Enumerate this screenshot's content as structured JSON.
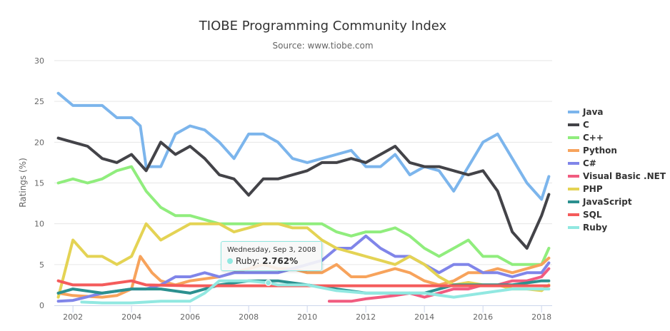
{
  "chart_data": {
    "type": "line",
    "title": "TIOBE Programming Community Index",
    "subtitle": "Source: www.tiobe.com",
    "ylabel": "Ratings (%)",
    "xlabel": "",
    "xlim": [
      2001.46,
      2018.24
    ],
    "ylim": [
      0,
      30
    ],
    "yticks": [
      0,
      5,
      10,
      15,
      20,
      25,
      30
    ],
    "xticks": [
      2002,
      2004,
      2006,
      2008,
      2010,
      2012,
      2014,
      2016,
      2018
    ],
    "grid": "horizontal",
    "legend_position": "right",
    "series": [
      {
        "name": "Java",
        "color": "#7cb5ec",
        "points": [
          [
            2001.5,
            26
          ],
          [
            2002,
            24.5
          ],
          [
            2002.5,
            24.5
          ],
          [
            2003,
            24.5
          ],
          [
            2003.5,
            23
          ],
          [
            2004,
            23
          ],
          [
            2004.3,
            22
          ],
          [
            2004.5,
            17
          ],
          [
            2005,
            17
          ],
          [
            2005.5,
            21
          ],
          [
            2006,
            22
          ],
          [
            2006.5,
            21.5
          ],
          [
            2007,
            20
          ],
          [
            2007.5,
            18
          ],
          [
            2008,
            21
          ],
          [
            2008.5,
            21
          ],
          [
            2009,
            20
          ],
          [
            2009.5,
            18
          ],
          [
            2010,
            17.5
          ],
          [
            2010.5,
            18
          ],
          [
            2011,
            18.5
          ],
          [
            2011.5,
            19
          ],
          [
            2012,
            17
          ],
          [
            2012.5,
            17
          ],
          [
            2013,
            18.5
          ],
          [
            2013.5,
            16
          ],
          [
            2014,
            17
          ],
          [
            2014.5,
            16.5
          ],
          [
            2015,
            14
          ],
          [
            2015.5,
            17
          ],
          [
            2016,
            20
          ],
          [
            2016.5,
            21
          ],
          [
            2017,
            18
          ],
          [
            2017.5,
            15
          ],
          [
            2018,
            13
          ],
          [
            2018.25,
            15.8
          ]
        ]
      },
      {
        "name": "C",
        "color": "#434348",
        "points": [
          [
            2001.5,
            20.5
          ],
          [
            2002,
            20
          ],
          [
            2002.5,
            19.5
          ],
          [
            2003,
            18
          ],
          [
            2003.5,
            17.5
          ],
          [
            2004,
            18.5
          ],
          [
            2004.5,
            16.5
          ],
          [
            2005,
            20
          ],
          [
            2005.5,
            18.5
          ],
          [
            2006,
            19.5
          ],
          [
            2006.5,
            18
          ],
          [
            2007,
            16
          ],
          [
            2007.5,
            15.5
          ],
          [
            2008,
            13.5
          ],
          [
            2008.5,
            15.5
          ],
          [
            2009,
            15.5
          ],
          [
            2009.5,
            16
          ],
          [
            2010,
            16.5
          ],
          [
            2010.5,
            17.5
          ],
          [
            2011,
            17.5
          ],
          [
            2011.5,
            18
          ],
          [
            2012,
            17.5
          ],
          [
            2012.5,
            18.5
          ],
          [
            2013,
            19.5
          ],
          [
            2013.5,
            17.5
          ],
          [
            2014,
            17
          ],
          [
            2014.5,
            17
          ],
          [
            2015,
            16.5
          ],
          [
            2015.5,
            16
          ],
          [
            2016,
            16.5
          ],
          [
            2016.5,
            14
          ],
          [
            2017,
            9
          ],
          [
            2017.5,
            7
          ],
          [
            2018,
            11
          ],
          [
            2018.25,
            13.6
          ]
        ]
      },
      {
        "name": "C++",
        "color": "#90ed7d",
        "points": [
          [
            2001.5,
            15
          ],
          [
            2002,
            15.5
          ],
          [
            2002.5,
            15
          ],
          [
            2003,
            15.5
          ],
          [
            2003.5,
            16.5
          ],
          [
            2004,
            17
          ],
          [
            2004.5,
            14
          ],
          [
            2005,
            12
          ],
          [
            2005.5,
            11
          ],
          [
            2006,
            11
          ],
          [
            2006.5,
            10.5
          ],
          [
            2007,
            10
          ],
          [
            2007.5,
            10
          ],
          [
            2008,
            10
          ],
          [
            2008.5,
            10
          ],
          [
            2009,
            10
          ],
          [
            2009.5,
            10
          ],
          [
            2010,
            10
          ],
          [
            2010.5,
            10
          ],
          [
            2011,
            9
          ],
          [
            2011.5,
            8.5
          ],
          [
            2012,
            9
          ],
          [
            2012.5,
            9
          ],
          [
            2013,
            9.5
          ],
          [
            2013.5,
            8.5
          ],
          [
            2014,
            7
          ],
          [
            2014.5,
            6
          ],
          [
            2015,
            7
          ],
          [
            2015.5,
            8
          ],
          [
            2016,
            6
          ],
          [
            2016.5,
            6
          ],
          [
            2017,
            5
          ],
          [
            2017.5,
            5
          ],
          [
            2018,
            5
          ],
          [
            2018.25,
            7
          ]
        ]
      },
      {
        "name": "Python",
        "color": "#f7a35c",
        "points": [
          [
            2001.5,
            1.5
          ],
          [
            2002,
            1.2
          ],
          [
            2003,
            1
          ],
          [
            2003.5,
            1.2
          ],
          [
            2004,
            2
          ],
          [
            2004.3,
            6
          ],
          [
            2004.7,
            4
          ],
          [
            2005,
            3
          ],
          [
            2005.5,
            2.5
          ],
          [
            2006,
            3
          ],
          [
            2007,
            3.5
          ],
          [
            2007.5,
            4
          ],
          [
            2008,
            4.5
          ],
          [
            2008.5,
            5
          ],
          [
            2009,
            4.5
          ],
          [
            2009.5,
            4.5
          ],
          [
            2010,
            4
          ],
          [
            2010.5,
            4
          ],
          [
            2011,
            5
          ],
          [
            2011.5,
            3.5
          ],
          [
            2012,
            3.5
          ],
          [
            2012.5,
            4
          ],
          [
            2013,
            4.5
          ],
          [
            2013.5,
            4
          ],
          [
            2014,
            3
          ],
          [
            2014.5,
            2.5
          ],
          [
            2015,
            3
          ],
          [
            2015.5,
            4
          ],
          [
            2016,
            4
          ],
          [
            2016.5,
            4.5
          ],
          [
            2017,
            4
          ],
          [
            2017.5,
            4.5
          ],
          [
            2018,
            5
          ],
          [
            2018.25,
            5.8
          ]
        ]
      },
      {
        "name": "C#",
        "color": "#8085e9",
        "points": [
          [
            2001.5,
            0.5
          ],
          [
            2002,
            0.6
          ],
          [
            2003,
            1.5
          ],
          [
            2004,
            2
          ],
          [
            2004.5,
            2
          ],
          [
            2005,
            2.5
          ],
          [
            2005.5,
            3.5
          ],
          [
            2006,
            3.5
          ],
          [
            2006.5,
            4
          ],
          [
            2007,
            3.5
          ],
          [
            2007.5,
            4
          ],
          [
            2008,
            4
          ],
          [
            2008.5,
            4
          ],
          [
            2009,
            4
          ],
          [
            2009.5,
            4.5
          ],
          [
            2010,
            5
          ],
          [
            2010.5,
            5.5
          ],
          [
            2011,
            7
          ],
          [
            2011.5,
            7
          ],
          [
            2012,
            8.5
          ],
          [
            2012.5,
            7
          ],
          [
            2013,
            6
          ],
          [
            2013.5,
            6
          ],
          [
            2014,
            5
          ],
          [
            2014.5,
            4
          ],
          [
            2015,
            5
          ],
          [
            2015.5,
            5
          ],
          [
            2016,
            4
          ],
          [
            2016.5,
            4
          ],
          [
            2017,
            3.5
          ],
          [
            2017.5,
            4
          ],
          [
            2018,
            4
          ],
          [
            2018.25,
            5.2
          ]
        ]
      },
      {
        "name": "Visual Basic .NET",
        "color": "#f15c80",
        "points": [
          [
            2010.75,
            0.5
          ],
          [
            2011,
            0.5
          ],
          [
            2011.5,
            0.5
          ],
          [
            2012,
            0.8
          ],
          [
            2012.5,
            1
          ],
          [
            2013,
            1.2
          ],
          [
            2013.5,
            1.5
          ],
          [
            2014,
            1
          ],
          [
            2014.5,
            1.5
          ],
          [
            2015,
            2
          ],
          [
            2015.5,
            2
          ],
          [
            2016,
            2.5
          ],
          [
            2016.5,
            2.5
          ],
          [
            2017,
            3
          ],
          [
            2017.5,
            3
          ],
          [
            2018,
            3.5
          ],
          [
            2018.25,
            4.5
          ]
        ]
      },
      {
        "name": "PHP",
        "color": "#e4d354",
        "points": [
          [
            2001.5,
            1
          ],
          [
            2002,
            8
          ],
          [
            2002.5,
            6
          ],
          [
            2003,
            6
          ],
          [
            2003.5,
            5
          ],
          [
            2004,
            6
          ],
          [
            2004.5,
            10
          ],
          [
            2005,
            8
          ],
          [
            2005.5,
            9
          ],
          [
            2006,
            10
          ],
          [
            2006.5,
            10
          ],
          [
            2007,
            10
          ],
          [
            2007.5,
            9
          ],
          [
            2008,
            9.5
          ],
          [
            2008.5,
            10
          ],
          [
            2009,
            10
          ],
          [
            2009.5,
            9.5
          ],
          [
            2010,
            9.5
          ],
          [
            2010.5,
            8
          ],
          [
            2011,
            7
          ],
          [
            2011.5,
            6.5
          ],
          [
            2012,
            6
          ],
          [
            2012.5,
            5.5
          ],
          [
            2013,
            5
          ],
          [
            2013.5,
            6
          ],
          [
            2014,
            5
          ],
          [
            2014.5,
            3.5
          ],
          [
            2015,
            2.5
          ],
          [
            2015.5,
            2.8
          ],
          [
            2016,
            2.5
          ],
          [
            2016.5,
            2.5
          ],
          [
            2017,
            2
          ],
          [
            2017.5,
            2
          ],
          [
            2018,
            1.8
          ],
          [
            2018.25,
            2.5
          ]
        ]
      },
      {
        "name": "JavaScript",
        "color": "#2b908f",
        "points": [
          [
            2001.5,
            1.5
          ],
          [
            2002,
            2
          ],
          [
            2003,
            1.5
          ],
          [
            2004,
            2
          ],
          [
            2005,
            2
          ],
          [
            2006,
            1.5
          ],
          [
            2007,
            2.5
          ],
          [
            2008,
            3
          ],
          [
            2009,
            3
          ],
          [
            2010,
            2.5
          ],
          [
            2011,
            2
          ],
          [
            2012,
            1.5
          ],
          [
            2013,
            1.5
          ],
          [
            2014,
            1.5
          ],
          [
            2015,
            2.5
          ],
          [
            2016,
            2.5
          ],
          [
            2017,
            2.5
          ],
          [
            2018,
            3
          ],
          [
            2018.25,
            3
          ]
        ]
      },
      {
        "name": "SQL",
        "color": "#f45b5b",
        "points": [
          [
            2001.5,
            3
          ],
          [
            2002,
            2.5
          ],
          [
            2003,
            2.5
          ],
          [
            2004,
            3
          ],
          [
            2004.5,
            2.5
          ],
          [
            2006,
            2.4
          ],
          [
            2008,
            2.4
          ],
          [
            2010,
            2.4
          ],
          [
            2012,
            2.4
          ],
          [
            2014,
            2.4
          ],
          [
            2016,
            2.4
          ],
          [
            2018,
            2.4
          ],
          [
            2018.25,
            2.4
          ]
        ]
      },
      {
        "name": "Ruby",
        "color": "#91e8e1",
        "points": [
          [
            2002.3,
            0.4
          ],
          [
            2003,
            0.3
          ],
          [
            2004,
            0.3
          ],
          [
            2005,
            0.5
          ],
          [
            2006,
            0.5
          ],
          [
            2006.5,
            1.5
          ],
          [
            2007,
            3
          ],
          [
            2008,
            3
          ],
          [
            2008.67,
            2.762
          ],
          [
            2009,
            2.5
          ],
          [
            2010,
            2.5
          ],
          [
            2011,
            1.8
          ],
          [
            2012,
            1.5
          ],
          [
            2013,
            1.5
          ],
          [
            2014,
            1.5
          ],
          [
            2015,
            1
          ],
          [
            2016,
            1.5
          ],
          [
            2017,
            2
          ],
          [
            2018,
            2
          ],
          [
            2018.25,
            2
          ]
        ]
      }
    ],
    "tooltip": {
      "date": "Wednesday, Sep 3, 2008",
      "series": "Ruby",
      "label": "Ruby: ",
      "value": "2.762%",
      "x": 2008.67,
      "y": 2.762
    }
  }
}
